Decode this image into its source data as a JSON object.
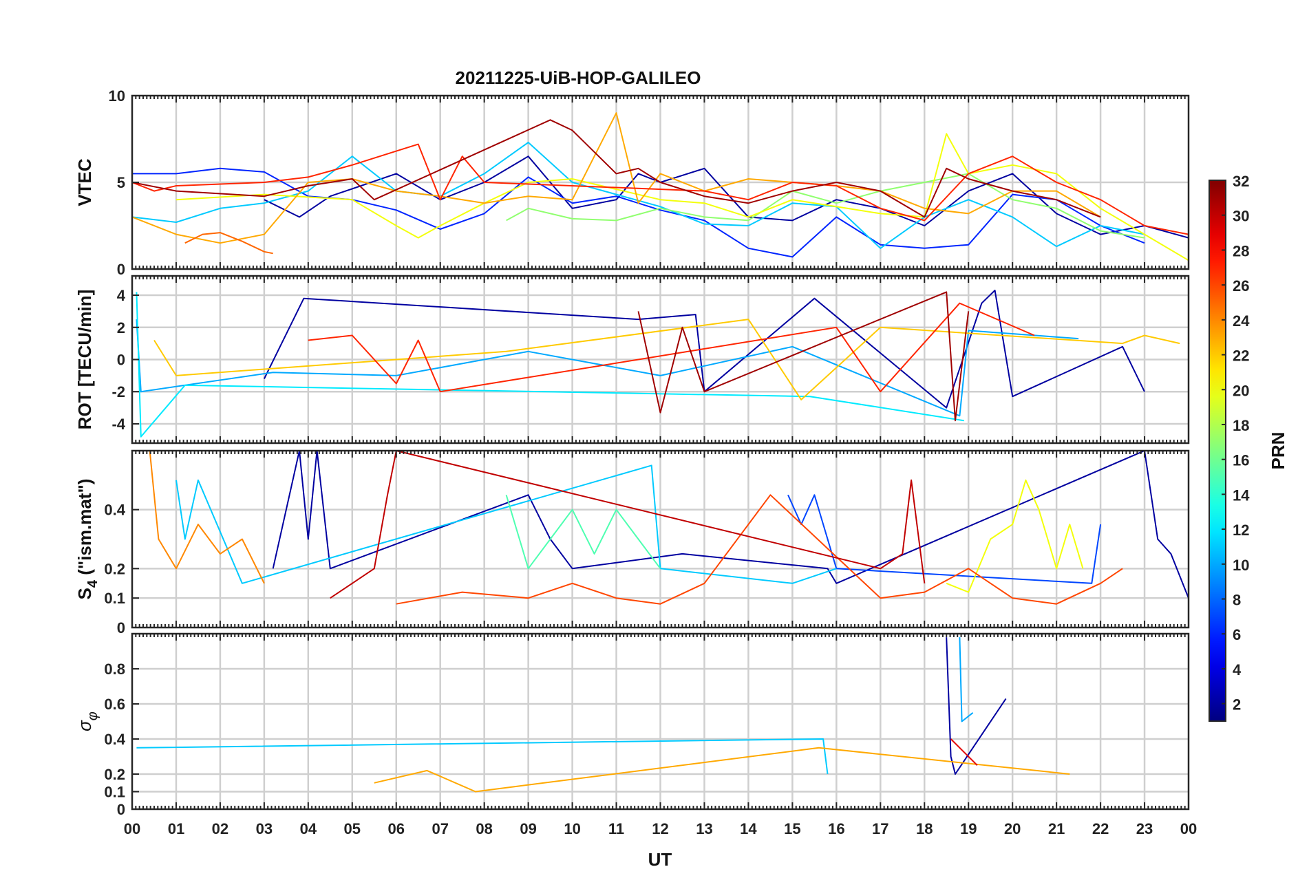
{
  "chart_data": {
    "title": "20211225-UiB-HOP-GALILEO",
    "xlabel": "UT",
    "x_tick_labels": [
      "00",
      "01",
      "02",
      "03",
      "04",
      "05",
      "06",
      "07",
      "08",
      "09",
      "10",
      "11",
      "12",
      "13",
      "14",
      "15",
      "16",
      "17",
      "18",
      "19",
      "20",
      "21",
      "22",
      "23",
      "00"
    ],
    "xlim_hours": [
      0,
      24
    ],
    "grid": true,
    "colorbar": {
      "label": "PRN",
      "range": [
        1,
        32
      ],
      "colormap": "jet",
      "ticks": [
        2,
        4,
        6,
        8,
        10,
        12,
        14,
        16,
        18,
        20,
        22,
        24,
        26,
        28,
        30,
        32
      ]
    },
    "panels": [
      {
        "id": "vtec",
        "type": "line",
        "ylabel": "VTEC",
        "ylim": [
          0,
          10
        ],
        "yticks": [
          0,
          5,
          10
        ],
        "series": [
          {
            "prn": 2,
            "x": [
              3.0,
              3.8,
              4.5,
              5.2,
              6.0,
              7.0,
              8.0,
              9.0,
              10.0,
              11.0,
              11.5,
              12.0,
              13.0,
              14.0,
              15.0,
              16.0,
              17.0,
              18.0,
              19.0,
              20.0,
              21.0,
              22.0,
              23.0,
              24.0
            ],
            "y": [
              4.0,
              3.0,
              4.2,
              4.8,
              5.5,
              4.0,
              5.0,
              6.5,
              3.5,
              4.0,
              5.5,
              5.0,
              5.8,
              3.0,
              2.8,
              4.0,
              3.5,
              2.5,
              4.5,
              5.5,
              3.2,
              2.0,
              2.5,
              1.8
            ]
          },
          {
            "prn": 6,
            "x": [
              0.0,
              1.0,
              2.0,
              3.0,
              4.0,
              5.0,
              6.0,
              7.0,
              8.0,
              9.0,
              10.0,
              11.0,
              12.0,
              13.0,
              14.0,
              15.0,
              16.0,
              17.0,
              18.0,
              19.0,
              20.0,
              21.0,
              22.0,
              23.0
            ],
            "y": [
              5.5,
              5.5,
              5.8,
              5.6,
              4.2,
              4.0,
              3.4,
              2.3,
              3.2,
              5.3,
              3.8,
              4.2,
              3.4,
              2.8,
              1.2,
              0.7,
              3.0,
              1.4,
              1.2,
              1.4,
              4.3,
              4.0,
              2.5,
              1.5
            ]
          },
          {
            "prn": 11,
            "x": [
              0.0,
              1.0,
              2.0,
              3.0,
              4.0,
              5.0,
              6.0,
              7.0,
              8.0,
              9.0,
              10.0,
              11.0,
              12.0,
              13.0,
              14.0,
              15.0,
              16.0,
              17.0,
              18.0,
              19.0,
              20.0,
              21.0,
              22.0,
              23.0
            ],
            "y": [
              3.0,
              2.7,
              3.5,
              3.8,
              4.5,
              6.5,
              4.5,
              4.2,
              5.5,
              7.3,
              5.0,
              4.3,
              3.6,
              2.6,
              2.5,
              3.8,
              3.6,
              1.2,
              3.0,
              4.0,
              3.0,
              1.3,
              2.5,
              2.0
            ]
          },
          {
            "prn": 17,
            "x": [
              8.5,
              9.0,
              10.0,
              11.0,
              12.0,
              13.0,
              14.0,
              15.0,
              16.0,
              17.0,
              18.0,
              19.0,
              20.0,
              21.0,
              22.0,
              23.0
            ],
            "y": [
              2.8,
              3.5,
              2.9,
              2.8,
              3.5,
              3.0,
              2.8,
              4.5,
              3.8,
              4.5,
              5.0,
              5.5,
              4.0,
              3.5,
              2.2,
              1.8
            ]
          },
          {
            "prn": 20,
            "x": [
              1.0,
              3.0,
              5.0,
              6.0,
              6.5,
              7.0,
              8.0,
              9.0,
              10.0,
              11.0,
              12.0,
              13.0,
              14.0,
              15.0,
              16.0,
              17.0,
              18.0,
              18.5,
              19.0,
              20.0,
              21.0,
              22.0,
              23.0,
              24.0
            ],
            "y": [
              4.0,
              4.3,
              4.0,
              2.5,
              1.8,
              2.5,
              3.8,
              5.0,
              5.2,
              4.6,
              4.0,
              3.8,
              3.0,
              4.0,
              3.6,
              3.2,
              3.0,
              7.8,
              5.5,
              6.0,
              5.5,
              3.5,
              2.0,
              0.5
            ]
          },
          {
            "prn": 23,
            "x": [
              0.0,
              1.0,
              2.0,
              3.0,
              4.0,
              5.0,
              6.0,
              7.0,
              8.0,
              9.0,
              10.0,
              11.0,
              11.5,
              12.0,
              13.0,
              14.0,
              15.0,
              16.0,
              17.0,
              18.0,
              19.0,
              20.0,
              21.0,
              22.0
            ],
            "y": [
              3.0,
              2.0,
              1.5,
              2.0,
              5.0,
              5.2,
              4.5,
              4.2,
              3.8,
              4.2,
              4.0,
              9.0,
              3.8,
              5.5,
              4.5,
              5.2,
              5.0,
              4.8,
              4.5,
              3.5,
              3.2,
              4.5,
              4.5,
              3.0
            ]
          },
          {
            "prn": 25,
            "x": [
              1.2,
              1.6,
              2.0,
              2.5,
              3.0,
              3.2
            ],
            "y": [
              1.5,
              2.0,
              2.1,
              1.6,
              1.0,
              0.9
            ]
          },
          {
            "prn": 27,
            "x": [
              0.0,
              0.5,
              1.0,
              3.0,
              4.0,
              5.0,
              6.0,
              6.5,
              7.0,
              7.5,
              8.0,
              13.0,
              14.0,
              15.0,
              16.0,
              17.0,
              18.0,
              19.0,
              20.0,
              21.0,
              22.0,
              23.0,
              24.0
            ],
            "y": [
              5.0,
              4.5,
              4.8,
              5.0,
              5.3,
              6.0,
              6.8,
              7.2,
              4.0,
              6.5,
              5.0,
              4.5,
              4.0,
              5.0,
              4.8,
              3.5,
              2.8,
              5.5,
              6.5,
              5.0,
              4.0,
              2.5,
              2.0
            ]
          },
          {
            "prn": 31,
            "x": [
              0.0,
              1.0,
              3.0,
              4.0,
              5.0,
              5.5,
              9.5,
              10.0,
              11.0,
              11.5,
              12.0,
              13.0,
              14.0,
              15.0,
              16.0,
              17.0,
              18.0,
              18.5,
              19.0,
              20.0,
              21.0,
              22.0
            ],
            "y": [
              5.0,
              4.5,
              4.2,
              4.8,
              5.2,
              4.0,
              8.6,
              8.0,
              5.5,
              5.8,
              5.0,
              4.2,
              3.8,
              4.5,
              5.0,
              4.5,
              3.0,
              5.8,
              5.2,
              4.5,
              4.0,
              3.0
            ]
          }
        ]
      },
      {
        "id": "rot",
        "type": "line",
        "ylabel": "ROT [TECU/min]",
        "ylim": [
          -5.2,
          5.2
        ],
        "yticks": [
          -4,
          -2,
          0,
          2,
          4
        ],
        "series": [
          {
            "prn": 2,
            "x": [
              3.0,
              3.9,
              11.5,
              12.8,
              13.0,
              15.5,
              18.5,
              19.3,
              19.6,
              20.0,
              22.5,
              23.0
            ],
            "y": [
              -1.2,
              3.8,
              2.5,
              2.8,
              -2.0,
              3.8,
              -3.0,
              3.5,
              4.3,
              -2.3,
              0.8,
              -2.0
            ]
          },
          {
            "prn": 10,
            "x": [
              0.1,
              0.2,
              3.2,
              6.0,
              9.0,
              12.0,
              15.0,
              18.8,
              19.0,
              21.5
            ],
            "y": [
              2.5,
              -2.0,
              -0.8,
              -1.0,
              0.5,
              -1.0,
              0.8,
              -3.5,
              1.8,
              1.3
            ]
          },
          {
            "prn": 12,
            "x": [
              0.1,
              0.2,
              1.2,
              15.4,
              18.9
            ],
            "y": [
              4.2,
              -4.8,
              -1.6,
              -2.3,
              -3.8
            ]
          },
          {
            "prn": 22,
            "x": [
              0.5,
              1.0,
              8.5,
              14.0,
              15.2,
              17.0,
              22.5,
              23.0,
              23.8
            ],
            "y": [
              1.2,
              -1.0,
              0.5,
              2.5,
              -2.5,
              2.0,
              1.0,
              1.5,
              1.0
            ]
          },
          {
            "prn": 27,
            "x": [
              4.0,
              5.0,
              6.0,
              6.5,
              7.0,
              16.0,
              17.0,
              18.8,
              20.5
            ],
            "y": [
              1.2,
              1.5,
              -1.5,
              1.2,
              -2.0,
              2.0,
              -2.0,
              3.5,
              1.5
            ]
          },
          {
            "prn": 31,
            "x": [
              11.5,
              12.0,
              12.5,
              13.0,
              18.5,
              18.7,
              19.0
            ],
            "y": [
              3.0,
              -3.3,
              2.0,
              -2.0,
              4.2,
              -3.8,
              3.0
            ]
          }
        ]
      },
      {
        "id": "s4",
        "type": "line",
        "ylabel": "S4 (\"ism.mat\")",
        "ylabel_main": "S",
        "ylabel_sub": "4",
        "ylabel_rest": " (\"ism.mat\")",
        "ylim": [
          0,
          0.6
        ],
        "yticks": [
          0,
          0.1,
          0.2,
          0.4
        ],
        "series": [
          {
            "prn": 2,
            "x": [
              3.2,
              3.8,
              4.0,
              4.2,
              4.5,
              9.0,
              9.5,
              10.0,
              12.5,
              15.8,
              16.0,
              23.0,
              23.3,
              23.6,
              24.0
            ],
            "y": [
              0.2,
              0.6,
              0.3,
              0.6,
              0.2,
              0.45,
              0.3,
              0.2,
              0.25,
              0.2,
              0.15,
              0.6,
              0.3,
              0.25,
              0.1
            ]
          },
          {
            "prn": 7,
            "x": [
              14.9,
              15.2,
              15.5,
              16.0,
              21.8,
              22.0
            ],
            "y": [
              0.45,
              0.35,
              0.45,
              0.2,
              0.15,
              0.35
            ]
          },
          {
            "prn": 11,
            "x": [
              1.0,
              1.2,
              1.5,
              2.5,
              11.8,
              12.0,
              15.0,
              16.0
            ],
            "y": [
              0.5,
              0.3,
              0.5,
              0.15,
              0.55,
              0.2,
              0.15,
              0.2
            ]
          },
          {
            "prn": 15,
            "x": [
              8.5,
              9.0,
              9.5,
              10.0,
              10.5,
              11.0,
              11.5,
              12.0
            ],
            "y": [
              0.45,
              0.2,
              0.3,
              0.4,
              0.25,
              0.4,
              0.3,
              0.2
            ]
          },
          {
            "prn": 20,
            "x": [
              18.5,
              19.0,
              19.5,
              20.0,
              20.3,
              20.6,
              21.0,
              21.3,
              21.6
            ],
            "y": [
              0.15,
              0.12,
              0.3,
              0.35,
              0.5,
              0.4,
              0.2,
              0.35,
              0.2
            ]
          },
          {
            "prn": 24,
            "x": [
              0.4,
              0.6,
              1.0,
              1.5,
              2.0,
              2.5,
              3.0
            ],
            "y": [
              0.6,
              0.3,
              0.2,
              0.35,
              0.25,
              0.3,
              0.15
            ]
          },
          {
            "prn": 26,
            "x": [
              6.0,
              7.5,
              9.0,
              10.0,
              11.0,
              12.0,
              13.0,
              14.5,
              17.0,
              18.0,
              19.0,
              20.0,
              21.0,
              22.0,
              22.5
            ],
            "y": [
              0.08,
              0.12,
              0.1,
              0.15,
              0.1,
              0.08,
              0.15,
              0.45,
              0.1,
              0.12,
              0.2,
              0.1,
              0.08,
              0.15,
              0.2
            ]
          },
          {
            "prn": 30,
            "x": [
              4.5,
              5.0,
              5.5,
              5.8,
              6.0,
              17.0,
              17.5,
              17.7,
              18.0
            ],
            "y": [
              0.1,
              0.15,
              0.2,
              0.45,
              0.6,
              0.2,
              0.25,
              0.5,
              0.15
            ]
          }
        ]
      },
      {
        "id": "sigma_phi",
        "type": "line",
        "ylabel": "σ φ",
        "ylabel_main": "σ",
        "ylabel_sub": "φ",
        "ylim": [
          0,
          1.0
        ],
        "yticks": [
          0,
          0.1,
          0.2,
          0.4,
          0.6,
          0.8
        ],
        "series": [
          {
            "prn": 2,
            "x": [
              18.5,
              18.6,
              18.7,
              19.85
            ],
            "y": [
              0.98,
              0.3,
              0.2,
              0.63
            ]
          },
          {
            "prn": 10,
            "x": [
              18.8,
              18.85,
              19.1
            ],
            "y": [
              0.98,
              0.5,
              0.55
            ]
          },
          {
            "prn": 11,
            "x": [
              0.1,
              15.7,
              15.8
            ],
            "y": [
              0.35,
              0.4,
              0.2
            ]
          },
          {
            "prn": 23,
            "x": [
              5.5,
              6.7,
              7.8,
              15.6,
              21.3
            ],
            "y": [
              0.15,
              0.22,
              0.1,
              0.35,
              0.2
            ]
          },
          {
            "prn": 29,
            "x": [
              18.6,
              19.2
            ],
            "y": [
              0.4,
              0.25
            ]
          }
        ]
      }
    ]
  }
}
